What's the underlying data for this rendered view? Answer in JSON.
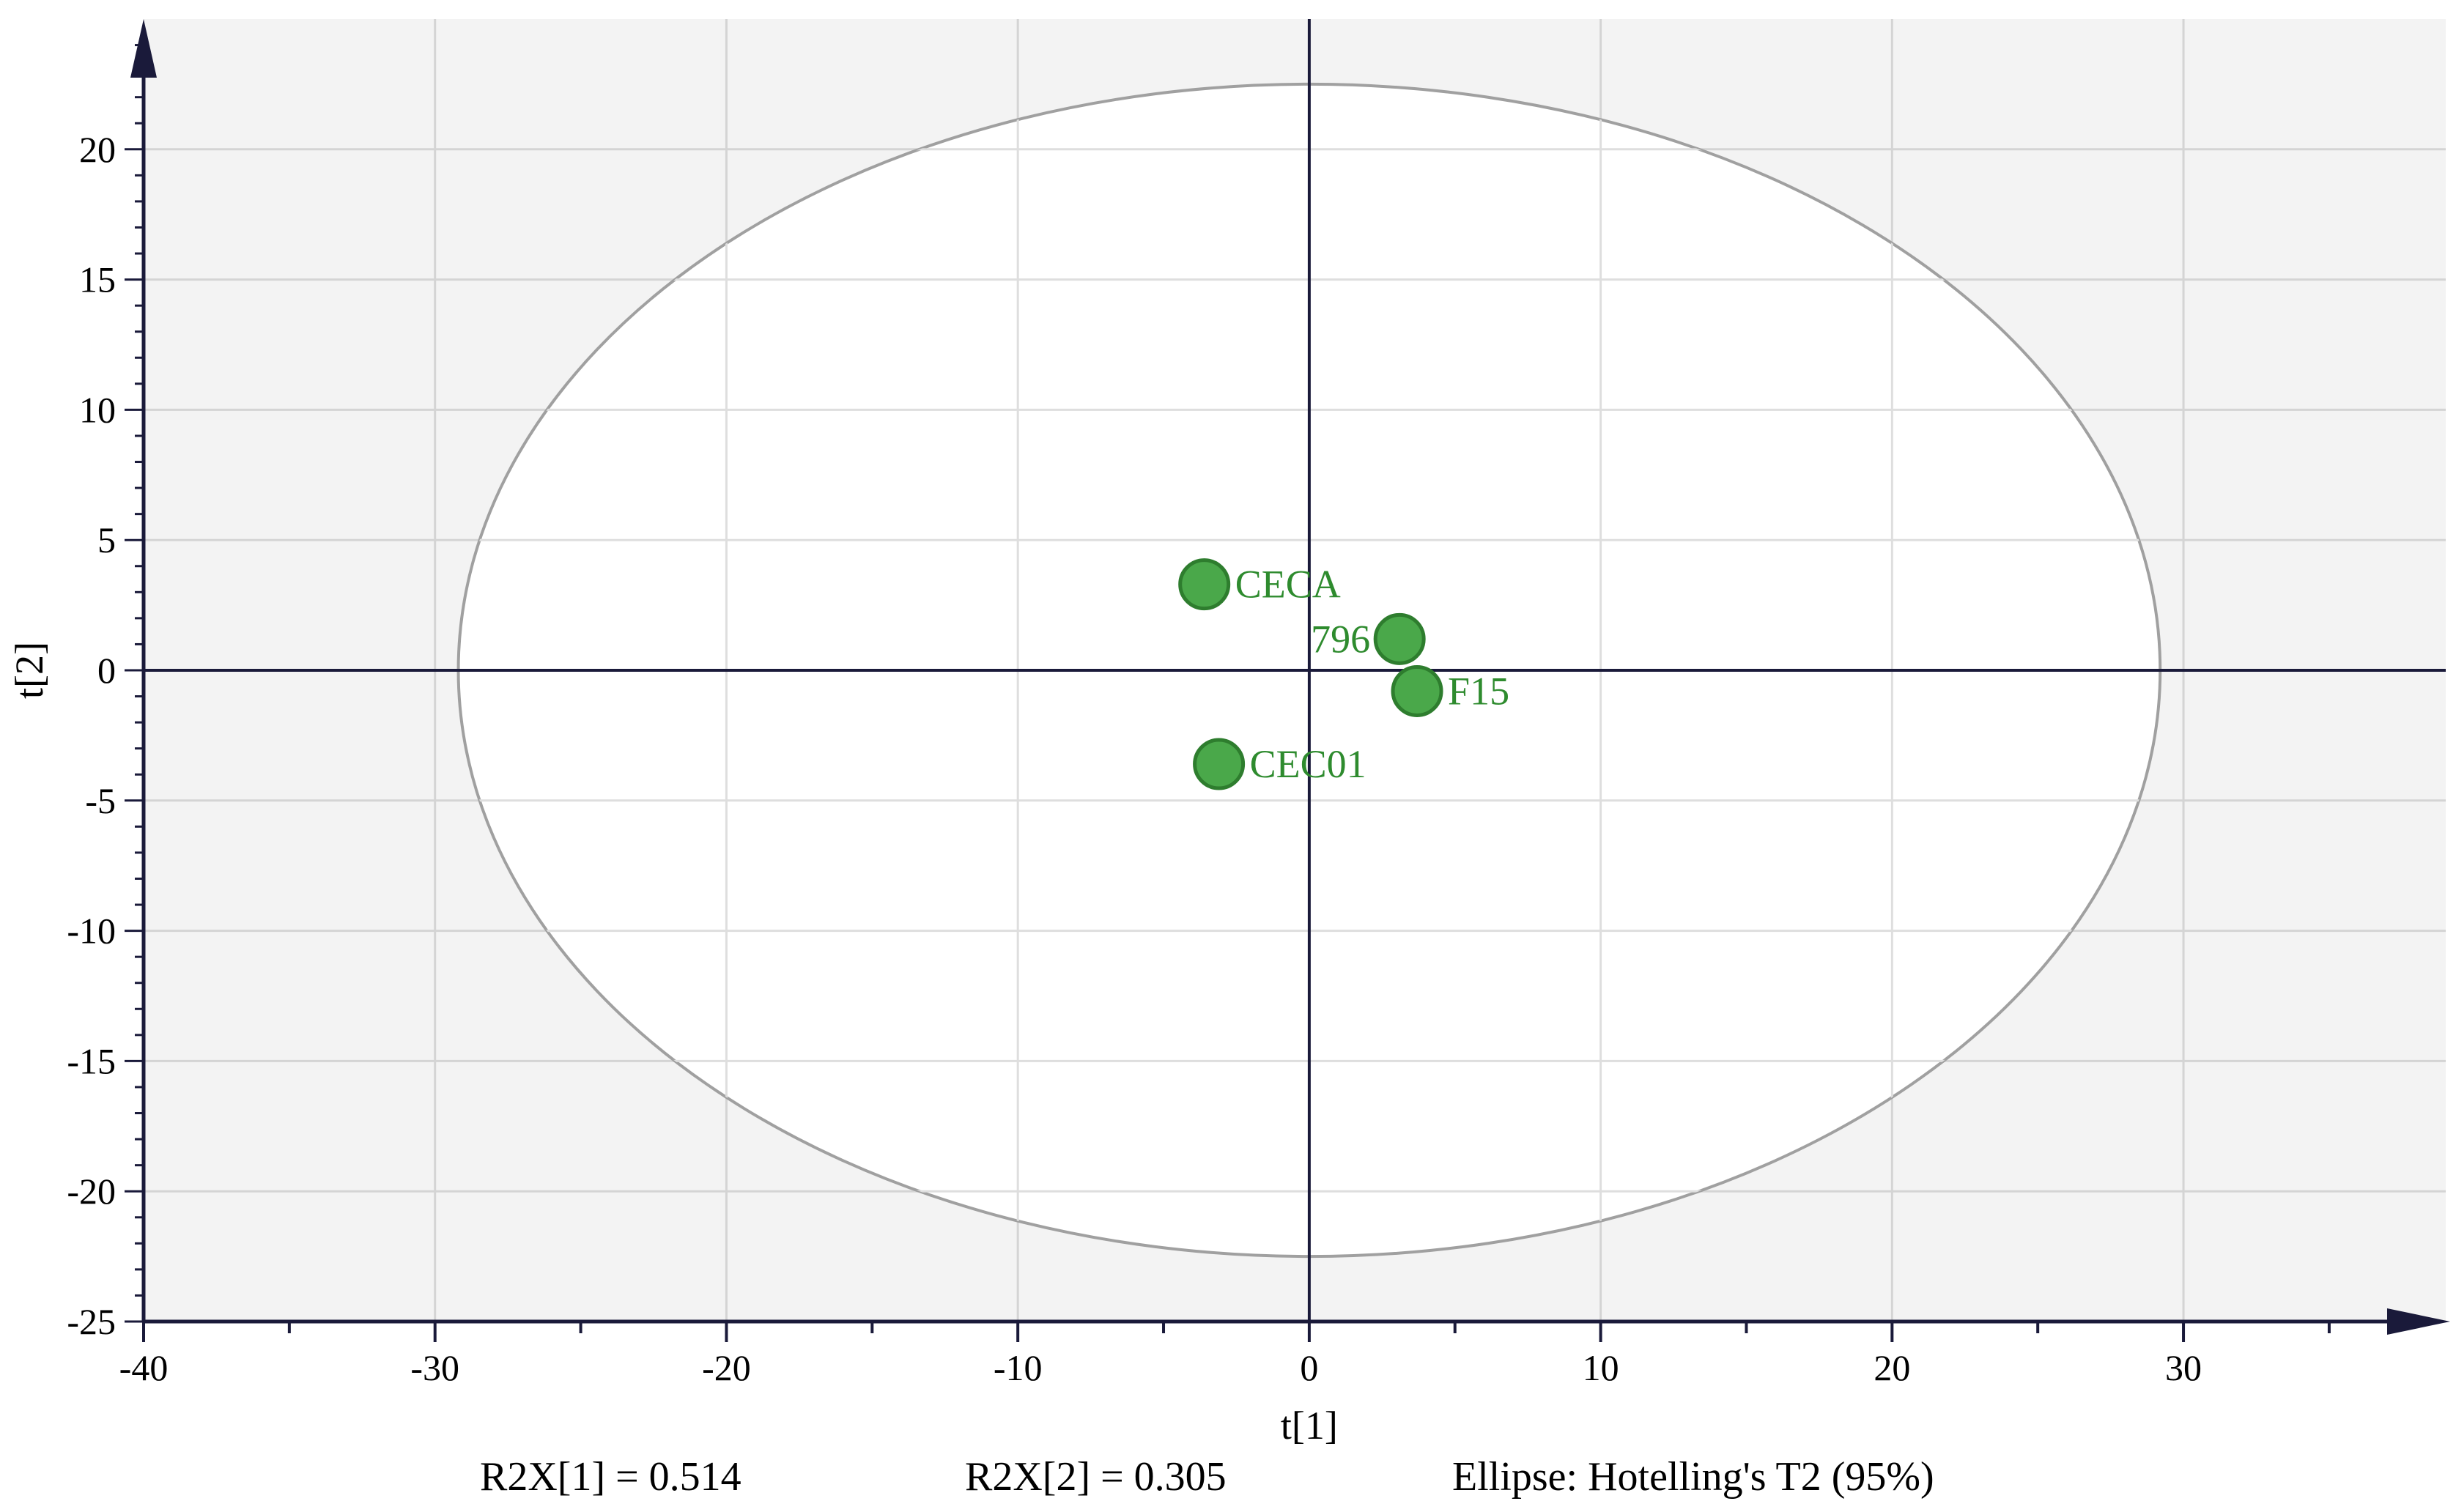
{
  "chart_data": {
    "type": "scatter",
    "title": "",
    "xlabel": "t[1]",
    "ylabel": "t[2]",
    "xlim": [
      -40,
      39
    ],
    "ylim": [
      -25,
      25
    ],
    "x_ticks": [
      -40,
      -30,
      -20,
      -10,
      0,
      10,
      20,
      30
    ],
    "y_ticks": [
      -25,
      -20,
      -15,
      -10,
      -5,
      0,
      5,
      10,
      15,
      20
    ],
    "x_tick_labels": [
      "-40",
      "-30",
      "-20",
      "-10",
      "0",
      "10",
      "20",
      "30"
    ],
    "y_tick_labels": [
      "-25",
      "-20",
      "-15",
      "-10",
      "-5",
      "0",
      "5",
      "10",
      "15",
      "20"
    ],
    "grid": true,
    "points": [
      {
        "label": "CECA",
        "x": -3.6,
        "y": 3.3
      },
      {
        "label": "796",
        "x": 3.1,
        "y": 1.2
      },
      {
        "label": "F15",
        "x": 3.7,
        "y": -0.8
      },
      {
        "label": "CEC01",
        "x": -3.1,
        "y": -3.6
      }
    ],
    "ellipse": {
      "rx": 29.2,
      "ry": 22.5
    },
    "point_color": "#4aa84a",
    "point_edge_color": "#2e7d2e",
    "label_color": "#2e8b2e"
  },
  "footer": {
    "r2x1": "R2X[1] = 0.514",
    "r2x2": "R2X[2] = 0.305",
    "ellipse_note": "Ellipse: Hotelling's T2 (95%)"
  }
}
